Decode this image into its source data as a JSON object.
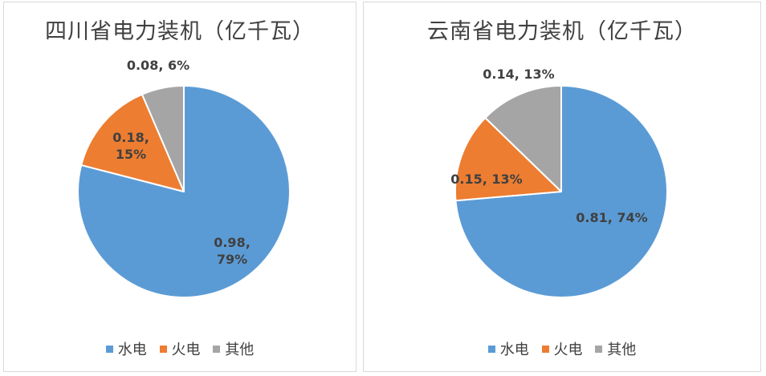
{
  "colors": {
    "hydro": "#5B9BD5",
    "thermal": "#ED7D31",
    "other": "#A5A5A5"
  },
  "legend": [
    "水电",
    "火电",
    "其他"
  ],
  "chart_data": [
    {
      "type": "pie",
      "title": "四川省电力装机（亿千瓦）",
      "categories": [
        "水电",
        "火电",
        "其他"
      ],
      "values": [
        0.98,
        0.18,
        0.08
      ],
      "percents": [
        79,
        15,
        6
      ],
      "labels": [
        "0.98, 79%",
        "0.18, 15%",
        "0.08, 6%"
      ],
      "legend_position": "bottom"
    },
    {
      "type": "pie",
      "title": "云南省电力装机（亿千瓦）",
      "categories": [
        "水电",
        "火电",
        "其他"
      ],
      "values": [
        0.81,
        0.15,
        0.14
      ],
      "percents": [
        74,
        13,
        13
      ],
      "labels": [
        "0.81, 74%",
        "0.15, 13%",
        "0.14, 13%"
      ],
      "legend_position": "bottom"
    }
  ]
}
